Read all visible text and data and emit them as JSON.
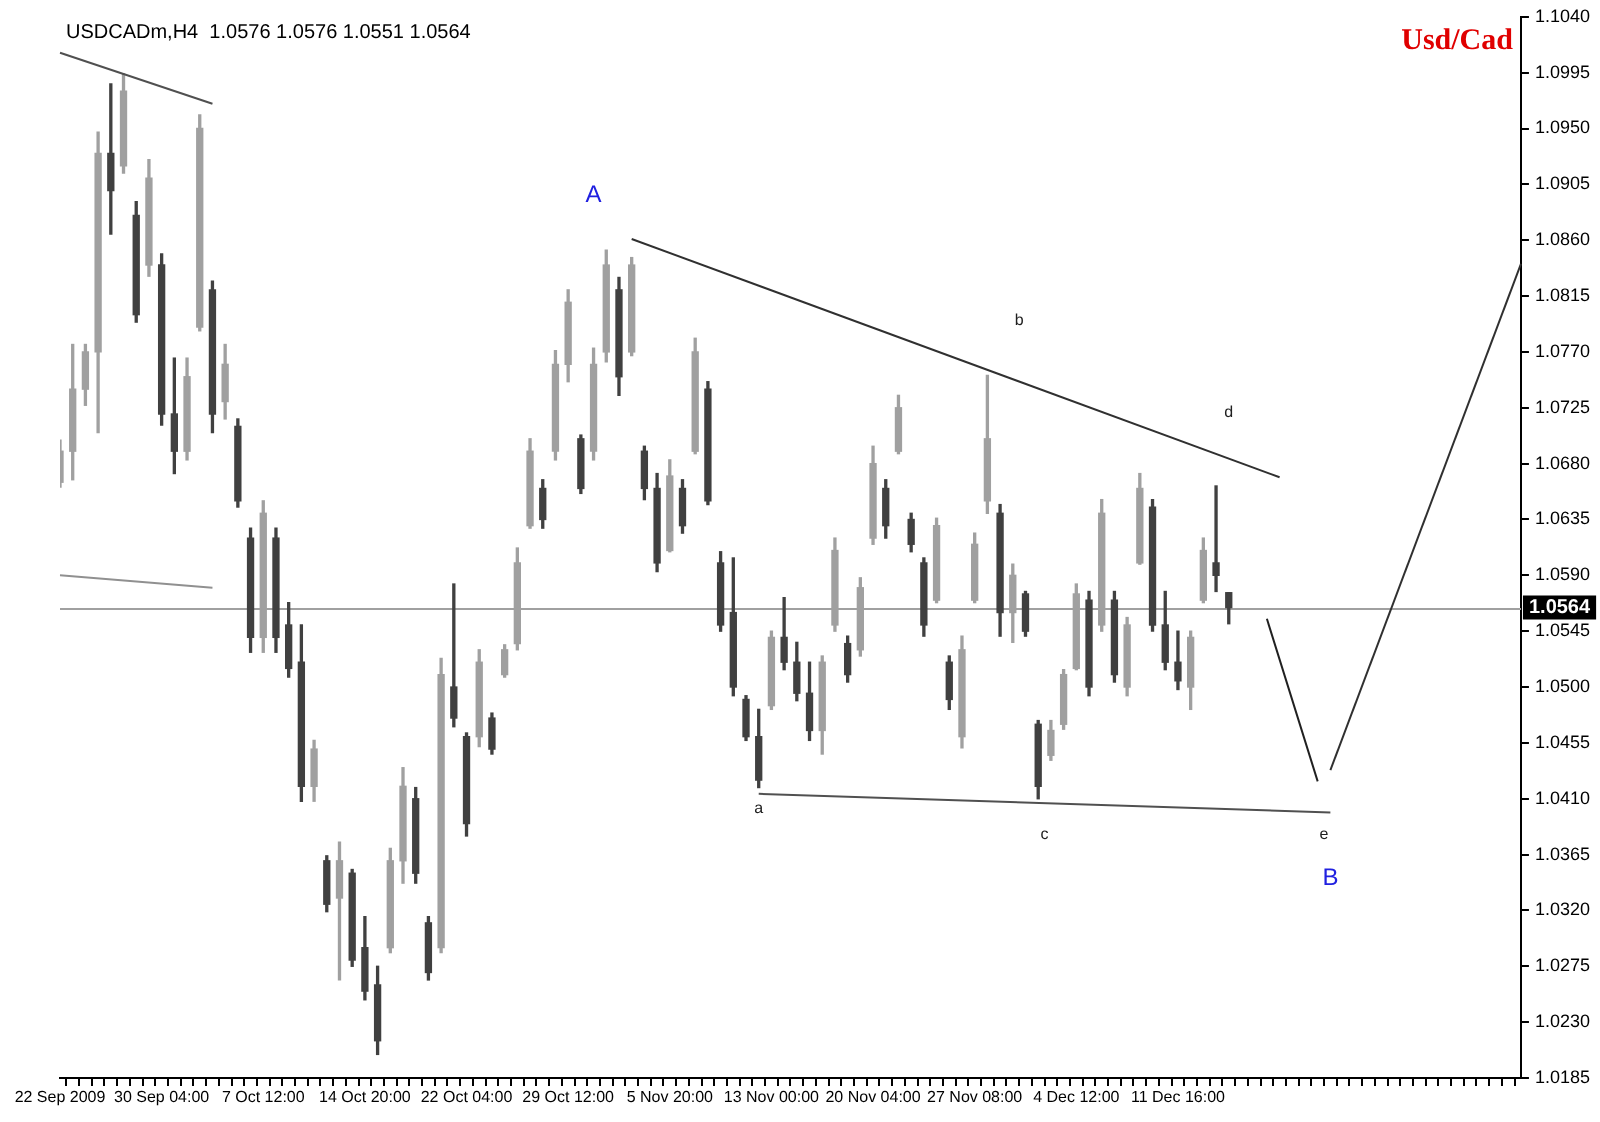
{
  "chart_data": {
    "type": "candlestick",
    "title": "USDCADm,H4  1.0576 1.0576 1.0551 1.0564",
    "categories": [
      "22 Sep 2009",
      null,
      null,
      null,
      null,
      null,
      null,
      null,
      "30 Sep 04:00",
      null,
      null,
      null,
      null,
      null,
      null,
      null,
      "7 Oct 12:00",
      null,
      null,
      null,
      null,
      null,
      null,
      null,
      "14 Oct 20:00",
      null,
      null,
      null,
      null,
      null,
      null,
      null,
      "22 Oct 04:00",
      null,
      null,
      null,
      null,
      null,
      null,
      null,
      "29 Oct 12:00",
      null,
      null,
      null,
      null,
      null,
      null,
      null,
      "5 Nov 20:00",
      null,
      null,
      null,
      null,
      null,
      null,
      null,
      "13 Nov 00:00",
      null,
      null,
      null,
      null,
      null,
      null,
      null,
      "20 Nov 04:00",
      null,
      null,
      null,
      null,
      null,
      null,
      null,
      "27 Nov 08:00",
      null,
      null,
      null,
      null,
      null,
      null,
      null,
      "4 Dec 12:00",
      null,
      null,
      null,
      null,
      null,
      null,
      null,
      "11 Dec 16:00",
      null,
      null,
      null,
      null,
      null,
      null,
      null,
      null,
      null,
      null,
      null,
      null,
      null,
      null,
      null,
      null,
      null,
      null,
      null,
      null,
      null,
      null,
      null,
      null,
      null,
      null,
      null
    ],
    "colors": [
      "#a0a0a0",
      "#a0a0a0",
      "#a0a0a0",
      "#a0a0a0",
      "#404040",
      "#a0a0a0",
      "#404040",
      "#a0a0a0",
      "#404040",
      "#404040",
      "#a0a0a0",
      "#a0a0a0",
      "#404040",
      "#a0a0a0",
      "#404040",
      "#404040",
      "#a0a0a0",
      "#404040",
      "#404040",
      "#404040",
      "#a0a0a0",
      "#404040",
      "#a0a0a0",
      "#404040",
      "#404040",
      "#404040",
      "#a0a0a0",
      "#a0a0a0",
      "#404040",
      "#404040",
      "#a0a0a0",
      "#404040",
      "#404040",
      "#a0a0a0",
      "#404040",
      "#a0a0a0",
      "#a0a0a0",
      "#a0a0a0",
      "#404040",
      "#a0a0a0",
      "#a0a0a0",
      "#404040",
      "#a0a0a0",
      "#a0a0a0",
      "#404040",
      "#a0a0a0",
      "#404040",
      "#404040",
      "#a0a0a0",
      "#404040",
      "#a0a0a0",
      "#404040",
      "#404040",
      "#404040",
      "#404040",
      "#404040",
      "#a0a0a0",
      "#404040",
      "#404040",
      "#404040",
      "#a0a0a0",
      "#a0a0a0",
      "#404040",
      "#a0a0a0",
      "#a0a0a0",
      "#404040",
      "#a0a0a0",
      "#404040",
      "#404040",
      "#a0a0a0",
      "#404040",
      "#a0a0a0",
      "#a0a0a0",
      "#a0a0a0",
      "#404040",
      "#a0a0a0",
      "#404040",
      "#404040",
      "#a0a0a0",
      "#a0a0a0",
      "#a0a0a0",
      "#404040",
      "#a0a0a0",
      "#404040",
      "#a0a0a0",
      "#a0a0a0",
      "#404040",
      "#404040",
      "#404040",
      "#a0a0a0",
      "#a0a0a0",
      "#404040",
      "#404040",
      null,
      null,
      null,
      null,
      null,
      null,
      null,
      null,
      null,
      null,
      null,
      null,
      null,
      null,
      null,
      null,
      null,
      null,
      null,
      null,
      null,
      null,
      null
    ],
    "ohlc": [
      [
        1.0665,
        1.0699,
        1.0661,
        1.069
      ],
      [
        1.069,
        1.0776,
        1.0667,
        1.074
      ],
      [
        1.074,
        1.0776,
        1.0727,
        1.077
      ],
      [
        1.077,
        1.0947,
        1.0705,
        1.093
      ],
      [
        1.093,
        1.0986,
        1.0865,
        1.09
      ],
      [
        1.092,
        1.0994,
        1.0914,
        1.098
      ],
      [
        1.088,
        1.0891,
        1.0794,
        1.08
      ],
      [
        1.084,
        1.0925,
        1.0831,
        1.091
      ],
      [
        1.084,
        1.0849,
        1.0711,
        1.072
      ],
      [
        1.072,
        1.0765,
        1.0672,
        1.069
      ],
      [
        1.069,
        1.0765,
        1.0683,
        1.075
      ],
      [
        1.079,
        1.0961,
        1.0787,
        1.095
      ],
      [
        1.082,
        1.0827,
        1.0705,
        1.072
      ],
      [
        1.073,
        1.0776,
        1.0716,
        1.076
      ],
      [
        1.071,
        1.0716,
        1.0645,
        1.065
      ],
      [
        1.062,
        1.0628,
        1.0528,
        1.054
      ],
      [
        1.054,
        1.065,
        1.0528,
        1.064
      ],
      [
        1.062,
        1.0628,
        1.0528,
        1.054
      ],
      [
        1.055,
        1.0568,
        1.0508,
        1.0515
      ],
      [
        1.052,
        1.055,
        1.0408,
        1.042
      ],
      [
        1.042,
        1.0457,
        1.0408,
        1.045
      ],
      [
        1.036,
        1.0364,
        1.0319,
        1.0325
      ],
      [
        1.033,
        1.0375,
        1.0264,
        1.036
      ],
      [
        1.035,
        1.0353,
        1.0275,
        1.028
      ],
      [
        1.029,
        1.0315,
        1.0248,
        1.0255
      ],
      [
        1.026,
        1.0275,
        1.0204,
        1.0215
      ],
      [
        1.029,
        1.037,
        1.0286,
        1.036
      ],
      [
        1.036,
        1.0435,
        1.0342,
        1.042
      ],
      [
        1.041,
        1.0419,
        1.0342,
        1.035
      ],
      [
        1.031,
        1.0315,
        1.0264,
        1.027
      ],
      [
        1.029,
        1.0523,
        1.0286,
        1.051
      ],
      [
        1.05,
        1.0583,
        1.0468,
        1.0475
      ],
      [
        1.046,
        1.0463,
        1.038,
        1.039
      ],
      [
        1.046,
        1.053,
        1.0452,
        1.052
      ],
      [
        1.0475,
        1.0479,
        1.0446,
        1.045
      ],
      [
        1.051,
        1.0534,
        1.0508,
        1.053
      ],
      [
        1.0535,
        1.0612,
        1.053,
        1.06
      ],
      [
        1.063,
        1.07,
        1.0628,
        1.069
      ],
      [
        1.066,
        1.0667,
        1.0628,
        1.0635
      ],
      [
        1.069,
        1.0771,
        1.0683,
        1.076
      ],
      [
        1.076,
        1.082,
        1.0746,
        1.081
      ],
      [
        1.07,
        1.0703,
        1.0656,
        1.066
      ],
      [
        1.069,
        1.0773,
        1.0683,
        1.076
      ],
      [
        1.077,
        1.0852,
        1.0762,
        1.084
      ],
      [
        1.082,
        1.083,
        1.0735,
        1.075
      ],
      [
        1.077,
        1.0846,
        1.0767,
        1.084
      ],
      [
        1.069,
        1.0694,
        1.0651,
        1.066
      ],
      [
        1.066,
        1.0672,
        1.0593,
        1.06
      ],
      [
        1.061,
        1.0683,
        1.0609,
        1.067
      ],
      [
        1.066,
        1.0667,
        1.0624,
        1.063
      ],
      [
        1.069,
        1.0781,
        1.0688,
        1.077
      ],
      [
        1.074,
        1.0746,
        1.0647,
        1.065
      ],
      [
        1.06,
        1.0609,
        1.0545,
        1.055
      ],
      [
        1.056,
        1.0604,
        1.0493,
        1.05
      ],
      [
        1.049,
        1.0493,
        1.0457,
        1.046
      ],
      [
        1.046,
        1.0482,
        1.0419,
        1.0425
      ],
      [
        1.0485,
        1.0545,
        1.0482,
        1.054
      ],
      [
        1.054,
        1.0572,
        1.0514,
        1.052
      ],
      [
        1.052,
        1.0536,
        1.0489,
        1.0495
      ],
      [
        1.0495,
        1.052,
        1.0457,
        1.0465
      ],
      [
        1.0465,
        1.0525,
        1.0446,
        1.052
      ],
      [
        1.055,
        1.062,
        1.0545,
        1.061
      ],
      [
        1.0535,
        1.0541,
        1.0504,
        1.051
      ],
      [
        1.053,
        1.0588,
        1.0525,
        1.058
      ],
      [
        1.062,
        1.0694,
        1.0615,
        1.068
      ],
      [
        1.066,
        1.0667,
        1.062,
        1.063
      ],
      [
        1.069,
        1.0735,
        1.0688,
        1.0725
      ],
      [
        1.0635,
        1.064,
        1.0609,
        1.0615
      ],
      [
        1.06,
        1.0604,
        1.0541,
        1.055
      ],
      [
        1.057,
        1.0636,
        1.0568,
        1.063
      ],
      [
        1.052,
        1.0525,
        1.0482,
        1.049
      ],
      [
        1.046,
        1.0541,
        1.0451,
        1.053
      ],
      [
        1.057,
        1.0624,
        1.0568,
        1.0615
      ],
      [
        1.065,
        1.0751,
        1.064,
        1.07
      ],
      [
        1.064,
        1.0647,
        1.0541,
        1.056
      ],
      [
        1.056,
        1.0599,
        1.0536,
        1.059
      ],
      [
        1.0575,
        1.0577,
        1.0541,
        1.0545
      ],
      [
        1.047,
        1.0473,
        1.041,
        1.042
      ],
      [
        1.0445,
        1.0473,
        1.0441,
        1.0465
      ],
      [
        1.047,
        1.0514,
        1.0466,
        1.051
      ],
      [
        1.0515,
        1.0583,
        1.0514,
        1.0575
      ],
      [
        1.057,
        1.0577,
        1.0493,
        1.05
      ],
      [
        1.055,
        1.0651,
        1.0545,
        1.064
      ],
      [
        1.057,
        1.0577,
        1.0504,
        1.051
      ],
      [
        1.05,
        1.0556,
        1.0493,
        1.055
      ],
      [
        1.06,
        1.0672,
        1.0599,
        1.066
      ],
      [
        1.0645,
        1.0651,
        1.0545,
        1.055
      ],
      [
        1.055,
        1.0577,
        1.0514,
        1.052
      ],
      [
        1.052,
        1.0545,
        1.0498,
        1.0505
      ],
      [
        1.05,
        1.0545,
        1.0482,
        1.054
      ],
      [
        1.057,
        1.062,
        1.0568,
        1.061
      ],
      [
        1.06,
        1.0662,
        1.0577,
        1.059
      ],
      [
        1.0576,
        1.0576,
        1.0551,
        1.0564
      ],
      null,
      null,
      null,
      null,
      null,
      null,
      null,
      null,
      null,
      null,
      null,
      null,
      null,
      null,
      null,
      null,
      null,
      null,
      null,
      null,
      null,
      null,
      null
    ],
    "series": [
      {
        "type": "line",
        "color": "#505050",
        "values": [
          1.1011,
          null,
          null,
          null,
          null,
          null,
          null,
          null,
          null,
          null,
          null,
          null,
          1.097,
          null,
          null,
          null,
          null,
          null,
          null,
          null,
          null,
          null,
          null,
          null,
          null,
          null,
          null,
          null,
          null,
          null,
          null,
          null,
          null,
          null,
          null,
          null,
          null,
          null,
          null,
          null,
          null,
          null,
          null,
          null,
          null,
          null,
          null,
          null,
          null,
          null,
          null,
          null,
          null,
          null,
          null,
          null,
          null,
          null,
          null,
          null,
          null,
          null,
          null,
          null,
          null,
          null,
          null,
          null,
          null,
          null,
          null,
          null,
          null,
          null,
          null,
          null,
          null,
          null,
          null,
          null,
          null,
          null,
          null,
          null,
          null,
          null,
          null,
          null,
          null,
          null,
          null,
          null,
          null,
          null,
          null,
          null,
          null,
          null,
          null,
          null,
          null,
          null,
          null,
          null,
          null,
          null,
          null,
          null,
          null,
          null,
          null,
          null,
          null,
          null,
          null,
          null
        ]
      },
      {
        "type": "line",
        "color": "#909090",
        "values": [
          1.059,
          null,
          null,
          null,
          null,
          null,
          null,
          null,
          null,
          null,
          null,
          null,
          1.058,
          null,
          null,
          null,
          null,
          null,
          null,
          null,
          null,
          null,
          null,
          null,
          null,
          null,
          null,
          null,
          null,
          null,
          null,
          null,
          null,
          null,
          null,
          null,
          null,
          null,
          null,
          null,
          null,
          null,
          null,
          null,
          null,
          null,
          null,
          null,
          null,
          null,
          null,
          null,
          null,
          null,
          null,
          null,
          null,
          null,
          null,
          null,
          null,
          null,
          null,
          null,
          null,
          null,
          null,
          null,
          null,
          null,
          null,
          null,
          null,
          null,
          null,
          null,
          null,
          null,
          null,
          null,
          null,
          null,
          null,
          null,
          null,
          null,
          null,
          null,
          null,
          null,
          null,
          null,
          null,
          null,
          null,
          null,
          null,
          null,
          null,
          null,
          null,
          null,
          null,
          null,
          null,
          null,
          null,
          null,
          null,
          null,
          null,
          null,
          null,
          null,
          null,
          null
        ]
      },
      {
        "type": "line",
        "color": "#303030",
        "values": [
          null,
          null,
          null,
          null,
          null,
          null,
          null,
          null,
          null,
          null,
          null,
          null,
          null,
          null,
          null,
          null,
          null,
          null,
          null,
          null,
          null,
          null,
          null,
          null,
          null,
          null,
          null,
          null,
          null,
          null,
          null,
          null,
          null,
          null,
          null,
          null,
          null,
          null,
          null,
          null,
          null,
          null,
          null,
          null,
          null,
          1.0861,
          null,
          null,
          null,
          null,
          null,
          null,
          null,
          null,
          null,
          null,
          null,
          null,
          null,
          null,
          null,
          null,
          null,
          null,
          null,
          null,
          null,
          null,
          null,
          null,
          null,
          null,
          null,
          null,
          null,
          null,
          null,
          null,
          null,
          null,
          null,
          null,
          null,
          null,
          null,
          null,
          null,
          null,
          null,
          null,
          null,
          null,
          null,
          null,
          null,
          null,
          1.0669,
          null,
          null,
          null,
          null,
          null,
          null,
          null,
          null,
          null,
          null,
          null,
          null,
          null,
          null,
          null,
          null,
          null,
          null,
          null
        ]
      },
      {
        "type": "line",
        "color": "#505050",
        "values": [
          null,
          null,
          null,
          null,
          null,
          null,
          null,
          null,
          null,
          null,
          null,
          null,
          null,
          null,
          null,
          null,
          null,
          null,
          null,
          null,
          null,
          null,
          null,
          null,
          null,
          null,
          null,
          null,
          null,
          null,
          null,
          null,
          null,
          null,
          null,
          null,
          null,
          null,
          null,
          null,
          null,
          null,
          null,
          null,
          null,
          null,
          null,
          null,
          null,
          null,
          null,
          null,
          null,
          null,
          null,
          1.0414,
          null,
          null,
          null,
          null,
          null,
          null,
          null,
          null,
          null,
          null,
          null,
          null,
          null,
          null,
          null,
          null,
          null,
          null,
          null,
          null,
          null,
          null,
          null,
          null,
          null,
          null,
          null,
          null,
          null,
          null,
          null,
          null,
          null,
          null,
          null,
          null,
          null,
          null,
          null,
          null,
          null,
          null,
          null,
          null,
          1.0399,
          null,
          null,
          null,
          null,
          null,
          null,
          null,
          null,
          null,
          null,
          null,
          null,
          null,
          null,
          null
        ]
      },
      {
        "type": "line",
        "color": "#202020",
        "values": [
          null,
          null,
          null,
          null,
          null,
          null,
          null,
          null,
          null,
          null,
          null,
          null,
          null,
          null,
          null,
          null,
          null,
          null,
          null,
          null,
          null,
          null,
          null,
          null,
          null,
          null,
          null,
          null,
          null,
          null,
          null,
          null,
          null,
          null,
          null,
          null,
          null,
          null,
          null,
          null,
          null,
          null,
          null,
          null,
          null,
          null,
          null,
          null,
          null,
          null,
          null,
          null,
          null,
          null,
          null,
          null,
          null,
          null,
          null,
          null,
          null,
          null,
          null,
          null,
          null,
          null,
          null,
          null,
          null,
          null,
          null,
          null,
          null,
          null,
          null,
          null,
          null,
          null,
          null,
          null,
          null,
          null,
          null,
          null,
          null,
          null,
          null,
          null,
          null,
          null,
          null,
          null,
          null,
          null,
          null,
          1.0555,
          null,
          null,
          null,
          1.0424,
          null,
          null,
          null,
          null,
          null,
          null,
          null,
          null,
          null,
          null,
          null,
          null,
          null,
          null,
          null,
          null
        ]
      },
      {
        "type": "line",
        "color": "#303030",
        "values": [
          null,
          null,
          null,
          null,
          null,
          null,
          null,
          null,
          null,
          null,
          null,
          null,
          null,
          null,
          null,
          null,
          null,
          null,
          null,
          null,
          null,
          null,
          null,
          null,
          null,
          null,
          null,
          null,
          null,
          null,
          null,
          null,
          null,
          null,
          null,
          null,
          null,
          null,
          null,
          null,
          null,
          null,
          null,
          null,
          null,
          null,
          null,
          null,
          null,
          null,
          null,
          null,
          null,
          null,
          null,
          null,
          null,
          null,
          null,
          null,
          null,
          null,
          null,
          null,
          null,
          null,
          null,
          null,
          null,
          null,
          null,
          null,
          null,
          null,
          null,
          null,
          null,
          null,
          null,
          null,
          null,
          null,
          null,
          null,
          null,
          null,
          null,
          null,
          null,
          null,
          null,
          null,
          null,
          null,
          null,
          null,
          null,
          null,
          null,
          null,
          1.0433,
          null,
          null,
          null,
          null,
          null,
          null,
          null,
          null,
          null,
          null,
          null,
          null,
          null,
          null,
          1.0841
        ]
      }
    ],
    "ylim": [
      1.0185,
      1.104
    ],
    "yticks": [
      {
        "value": 1.104,
        "label": "1.1040"
      },
      1.0995,
      {
        "value": 1.095,
        "label": "1.0950"
      },
      1.0905,
      {
        "value": 1.086,
        "label": "1.0860"
      },
      1.0815,
      {
        "value": 1.077,
        "label": "1.0770"
      },
      1.0725,
      {
        "value": 1.068,
        "label": "1.0680"
      },
      1.0635,
      {
        "value": 1.059,
        "label": "1.0590"
      },
      1.0545,
      {
        "value": 1.05,
        "label": "1.0500"
      },
      1.0455,
      {
        "value": 1.041,
        "label": "1.0410"
      },
      1.0365,
      {
        "value": 1.032,
        "label": "1.0320"
      },
      1.0275,
      {
        "value": 1.023,
        "label": "1.0230"
      },
      1.0185
    ],
    "ref_lines": [
      {
        "axis": "y",
        "value": 1.0564,
        "label": "1.0564",
        "color": "#a0a0a0"
      }
    ],
    "annotations": [
      "Usd/Cad",
      "A",
      "b",
      "a",
      "c",
      "d",
      "e",
      "B"
    ]
  }
}
